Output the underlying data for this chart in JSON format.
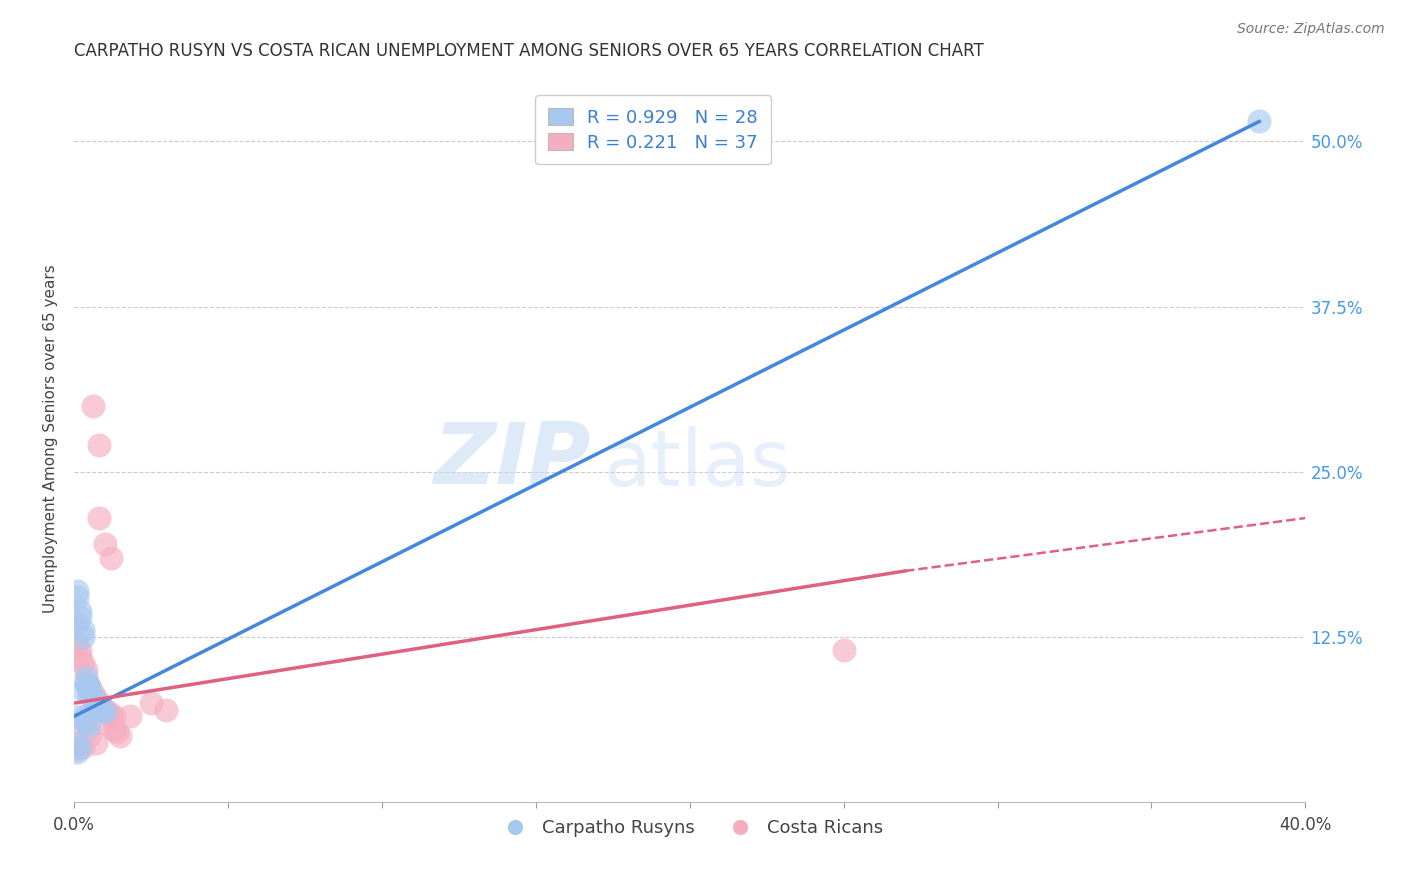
{
  "title": "CARPATHO RUSYN VS COSTA RICAN UNEMPLOYMENT AMONG SENIORS OVER 65 YEARS CORRELATION CHART",
  "source": "Source: ZipAtlas.com",
  "ylabel": "Unemployment Among Seniors over 65 years",
  "xlim": [
    0,
    0.4
  ],
  "ylim": [
    0,
    0.55
  ],
  "xticks": [
    0.0,
    0.05,
    0.1,
    0.15,
    0.2,
    0.25,
    0.3,
    0.35,
    0.4
  ],
  "yticks_right": [
    0.0,
    0.125,
    0.25,
    0.375,
    0.5
  ],
  "ytick_labels_right": [
    "",
    "12.5%",
    "25.0%",
    "37.5%",
    "50.0%"
  ],
  "blue_r": "0.929",
  "blue_n": "28",
  "pink_r": "0.221",
  "pink_n": "37",
  "blue_color": "#a8c8f0",
  "pink_color": "#f5aec0",
  "blue_line_color": "#4488dd",
  "pink_line_color": "#e06080",
  "legend_label_blue": "Carpatho Rusyns",
  "legend_label_pink": "Costa Ricans",
  "watermark_zip": "ZIP",
  "watermark_atlas": "atlas",
  "blue_line_x0": 0.0,
  "blue_line_y0": 0.065,
  "blue_line_x1": 0.385,
  "blue_line_y1": 0.515,
  "pink_line_x0": 0.0,
  "pink_line_y0": 0.075,
  "pink_line_x1_solid": 0.27,
  "pink_line_y1_solid": 0.175,
  "pink_line_x1_dash": 0.4,
  "pink_line_y1_dash": 0.215,
  "blue_scatter_x": [
    0.001,
    0.001,
    0.002,
    0.002,
    0.003,
    0.003,
    0.003,
    0.004,
    0.004,
    0.005,
    0.005,
    0.005,
    0.006,
    0.006,
    0.007,
    0.007,
    0.008,
    0.008,
    0.009,
    0.01,
    0.002,
    0.003,
    0.004,
    0.005,
    0.001,
    0.002,
    0.001,
    0.385
  ],
  "blue_scatter_y": [
    0.16,
    0.155,
    0.145,
    0.14,
    0.13,
    0.125,
    0.085,
    0.095,
    0.09,
    0.088,
    0.085,
    0.082,
    0.08,
    0.078,
    0.076,
    0.074,
    0.073,
    0.072,
    0.07,
    0.068,
    0.065,
    0.062,
    0.06,
    0.058,
    0.045,
    0.042,
    0.038,
    0.515
  ],
  "pink_scatter_x": [
    0.001,
    0.001,
    0.002,
    0.002,
    0.003,
    0.003,
    0.004,
    0.004,
    0.004,
    0.005,
    0.005,
    0.005,
    0.006,
    0.006,
    0.007,
    0.007,
    0.008,
    0.009,
    0.01,
    0.01,
    0.011,
    0.012,
    0.013,
    0.013,
    0.014,
    0.015,
    0.018,
    0.025,
    0.03,
    0.008,
    0.01,
    0.012,
    0.006,
    0.008,
    0.25,
    0.001,
    0.003
  ],
  "pink_scatter_y": [
    0.135,
    0.12,
    0.115,
    0.11,
    0.105,
    0.055,
    0.1,
    0.09,
    0.065,
    0.088,
    0.085,
    0.05,
    0.083,
    0.08,
    0.078,
    0.045,
    0.075,
    0.072,
    0.07,
    0.06,
    0.068,
    0.065,
    0.065,
    0.055,
    0.053,
    0.05,
    0.065,
    0.075,
    0.07,
    0.215,
    0.195,
    0.185,
    0.3,
    0.27,
    0.115,
    0.04,
    0.042
  ],
  "background_color": "#ffffff",
  "grid_color": "#cccccc"
}
